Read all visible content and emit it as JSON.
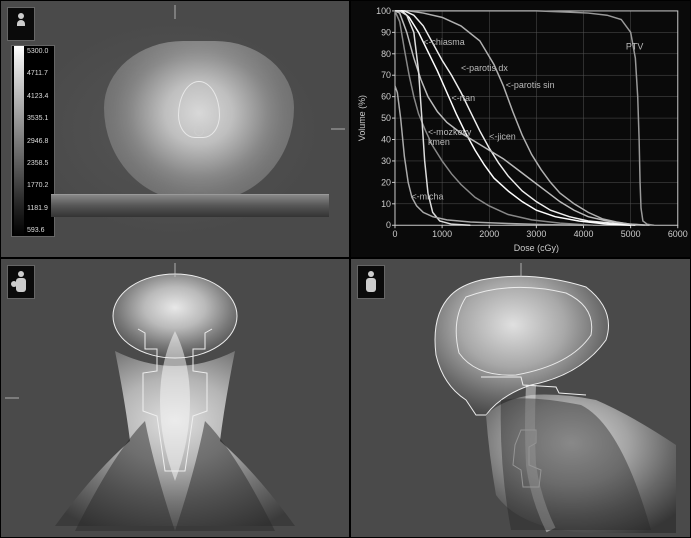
{
  "colorbar": {
    "ticks": [
      "5300.0",
      "4711.7",
      "4123.4",
      "3535.1",
      "2946.8",
      "2358.5",
      "1770.2",
      "1181.9",
      "593.6"
    ]
  },
  "chart": {
    "type": "line",
    "title": "",
    "xlabel": "Dose (cGy)",
    "ylabel": "Volume (%)",
    "xlim": [
      0,
      6000
    ],
    "ylim": [
      0,
      100
    ],
    "xtick_step": 1000,
    "ytick_step": 10,
    "background_color": "#0a0a0a",
    "grid_color": "#555555",
    "axis_color": "#cccccc",
    "label_fontsize": 9,
    "series": [
      {
        "name": "PTV",
        "label_pos": [
          4900,
          82
        ],
        "color": "#999999",
        "points": [
          [
            0,
            100
          ],
          [
            500,
            100
          ],
          [
            1000,
            100
          ],
          [
            2000,
            100
          ],
          [
            3000,
            100
          ],
          [
            3600,
            99.5
          ],
          [
            4100,
            99
          ],
          [
            4500,
            98
          ],
          [
            4800,
            96
          ],
          [
            5000,
            90
          ],
          [
            5100,
            78
          ],
          [
            5150,
            60
          ],
          [
            5180,
            40
          ],
          [
            5200,
            20
          ],
          [
            5220,
            8
          ],
          [
            5260,
            2
          ],
          [
            5350,
            0.5
          ],
          [
            5500,
            0
          ]
        ]
      },
      {
        "name": "parotis sin",
        "label": "<-parotis sin",
        "label_pos": [
          2350,
          64
        ],
        "color": "#b0b0b0",
        "points": [
          [
            0,
            100
          ],
          [
            300,
            100
          ],
          [
            600,
            99
          ],
          [
            1000,
            97
          ],
          [
            1400,
            93
          ],
          [
            1800,
            86
          ],
          [
            2100,
            75
          ],
          [
            2300,
            65
          ],
          [
            2500,
            53
          ],
          [
            2700,
            42
          ],
          [
            2900,
            33
          ],
          [
            3100,
            26
          ],
          [
            3300,
            20
          ],
          [
            3500,
            15
          ],
          [
            3800,
            10
          ],
          [
            4100,
            6
          ],
          [
            4400,
            3
          ],
          [
            4700,
            1.5
          ],
          [
            5000,
            0.5
          ],
          [
            5300,
            0
          ]
        ]
      },
      {
        "name": "parotis dx",
        "label": "<-parotis dx",
        "label_pos": [
          1400,
          72
        ],
        "color": "#eeeeee",
        "points": [
          [
            0,
            100
          ],
          [
            200,
            100
          ],
          [
            400,
            98
          ],
          [
            600,
            93
          ],
          [
            800,
            85
          ],
          [
            1000,
            77
          ],
          [
            1200,
            70
          ],
          [
            1400,
            62
          ],
          [
            1600,
            53
          ],
          [
            1800,
            44
          ],
          [
            2000,
            36
          ],
          [
            2200,
            29
          ],
          [
            2400,
            23
          ],
          [
            2700,
            16
          ],
          [
            3000,
            11
          ],
          [
            3300,
            7
          ],
          [
            3700,
            4
          ],
          [
            4100,
            2
          ],
          [
            4600,
            1
          ],
          [
            5100,
            0
          ]
        ]
      },
      {
        "name": "rtan",
        "label": "<-rtan",
        "label_pos": [
          1200,
          58
        ],
        "color": "#ffffff",
        "points": [
          [
            0,
            100
          ],
          [
            150,
            100
          ],
          [
            300,
            97
          ],
          [
            500,
            90
          ],
          [
            700,
            81
          ],
          [
            900,
            72
          ],
          [
            1100,
            62
          ],
          [
            1300,
            52
          ],
          [
            1500,
            43
          ],
          [
            1700,
            35
          ],
          [
            1900,
            28
          ],
          [
            2100,
            22
          ],
          [
            2400,
            16
          ],
          [
            2700,
            11
          ],
          [
            3000,
            7
          ],
          [
            3400,
            4
          ],
          [
            3900,
            2
          ],
          [
            4500,
            0.5
          ],
          [
            5000,
            0
          ]
        ]
      },
      {
        "name": "jicen",
        "label": "<-jicen",
        "label_pos": [
          2000,
          40
        ],
        "color": "#bbbbbb",
        "points": [
          [
            0,
            100
          ],
          [
            100,
            99
          ],
          [
            250,
            90
          ],
          [
            400,
            78
          ],
          [
            550,
            68
          ],
          [
            700,
            60
          ],
          [
            900,
            53
          ],
          [
            1100,
            48
          ],
          [
            1400,
            43
          ],
          [
            1700,
            39
          ],
          [
            2000,
            35
          ],
          [
            2300,
            31
          ],
          [
            2600,
            26
          ],
          [
            2900,
            21
          ],
          [
            3200,
            16
          ],
          [
            3500,
            11
          ],
          [
            3800,
            7
          ],
          [
            4100,
            4
          ],
          [
            4500,
            2
          ],
          [
            5000,
            0.5
          ],
          [
            5400,
            0
          ]
        ]
      },
      {
        "name": "mozkovy kmen",
        "label": "<-mozkovy ",
        "label2": "   kmen",
        "label_pos": [
          700,
          42
        ],
        "color": "#888888",
        "points": [
          [
            0,
            100
          ],
          [
            100,
            95
          ],
          [
            200,
            82
          ],
          [
            300,
            70
          ],
          [
            400,
            60
          ],
          [
            500,
            52
          ],
          [
            650,
            44
          ],
          [
            800,
            37
          ],
          [
            1000,
            30
          ],
          [
            1200,
            24
          ],
          [
            1400,
            19
          ],
          [
            1700,
            13
          ],
          [
            2000,
            9
          ],
          [
            2400,
            5
          ],
          [
            2900,
            2.5
          ],
          [
            3500,
            1
          ],
          [
            4200,
            0
          ]
        ]
      },
      {
        "name": "chiasma",
        "label": "<-chiasma",
        "label_pos": [
          600,
          84
        ],
        "color": "#dddddd",
        "points": [
          [
            0,
            100
          ],
          [
            100,
            100
          ],
          [
            250,
            98
          ],
          [
            400,
            90
          ],
          [
            500,
            72
          ],
          [
            570,
            50
          ],
          [
            630,
            30
          ],
          [
            700,
            15
          ],
          [
            800,
            6
          ],
          [
            950,
            2
          ],
          [
            1200,
            0.5
          ],
          [
            1600,
            0
          ]
        ]
      },
      {
        "name": "micha",
        "label": "<-micha",
        "label_pos": [
          350,
          12
        ],
        "color": "#aaaaaa",
        "points": [
          [
            0,
            65
          ],
          [
            50,
            62
          ],
          [
            120,
            50
          ],
          [
            200,
            32
          ],
          [
            280,
            20
          ],
          [
            360,
            13
          ],
          [
            460,
            9
          ],
          [
            600,
            6
          ],
          [
            800,
            4
          ],
          [
            1100,
            2.5
          ],
          [
            1600,
            1.5
          ],
          [
            2400,
            0.8
          ],
          [
            3200,
            0.3
          ],
          [
            4000,
            0
          ]
        ]
      }
    ]
  },
  "views": {
    "axial_icon": "axial",
    "coronal_icon": "coronal",
    "sagittal_icon": "sagittal"
  }
}
